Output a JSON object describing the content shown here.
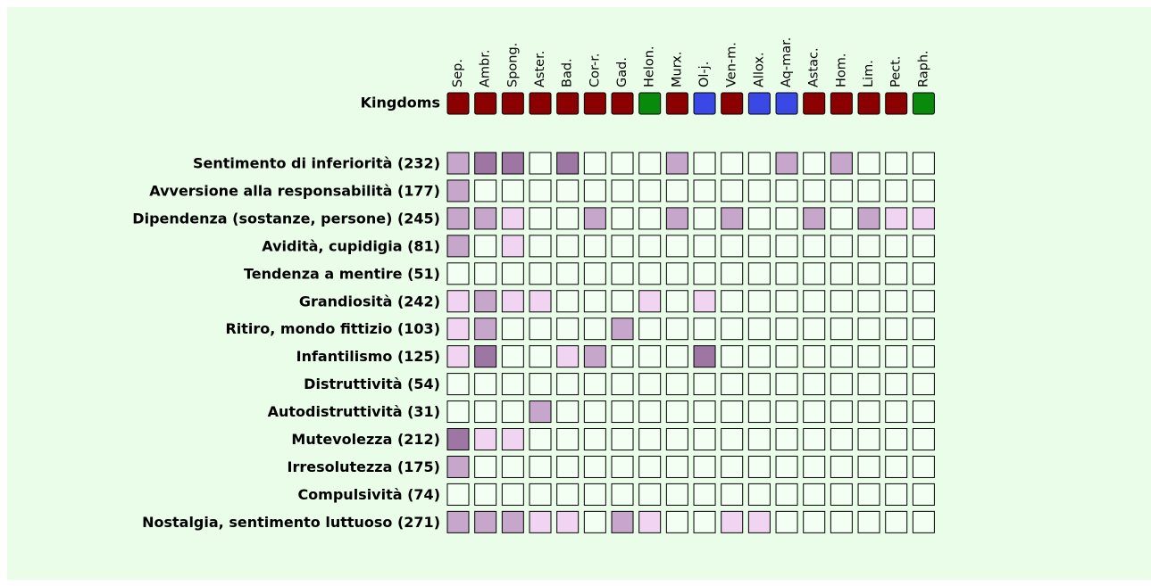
{
  "chart_data": {
    "type": "heatmap",
    "kingdoms_label": "Kingdoms",
    "x": [
      "Sep.",
      "Ambr.",
      "Spong.",
      "Aster.",
      "Bad.",
      "Cor-r.",
      "Gad.",
      "Helon.",
      "Murx.",
      "Ol-j.",
      "Ven-m.",
      "Allox.",
      "Aq-mar.",
      "Astac.",
      "Hom.",
      "Lim.",
      "Pect.",
      "Raph."
    ],
    "kingdom_colors": [
      "#8b0000",
      "#8b0000",
      "#8b0000",
      "#8b0000",
      "#8b0000",
      "#8b0000",
      "#8b0000",
      "#0a8a0a",
      "#8b0000",
      "#3a48e6",
      "#8b0000",
      "#3a48e6",
      "#3a48e6",
      "#8b0000",
      "#8b0000",
      "#8b0000",
      "#8b0000",
      "#0a8a0a"
    ],
    "y": [
      "Sentimento di inferiorità (232)",
      "Avversione alla responsabilità (177)",
      "Dipendenza (sostanze, persone) (245)",
      "Avidità, cupidigia (81)",
      "Tendenza a mentire (51)",
      "Grandiosità (242)",
      "Ritiro, mondo fittizio (103)",
      "Infantilismo (125)",
      "Distruttività (54)",
      "Autodistruttività (31)",
      "Mutevolezza (212)",
      "Irresolutezza (175)",
      "Compulsività (74)",
      "Nostalgia, sentimento luttuoso (271)"
    ],
    "level_colors": [
      "#f3fff3",
      "#f0d4f2",
      "#c7a6cb",
      "#9d76a3"
    ],
    "values": [
      [
        2,
        3,
        3,
        0,
        3,
        0,
        0,
        0,
        2,
        0,
        0,
        0,
        2,
        0,
        2,
        0,
        0,
        0
      ],
      [
        2,
        0,
        0,
        0,
        0,
        0,
        0,
        0,
        0,
        0,
        0,
        0,
        0,
        0,
        0,
        0,
        0,
        0
      ],
      [
        2,
        2,
        1,
        0,
        0,
        2,
        0,
        0,
        2,
        0,
        2,
        0,
        0,
        2,
        0,
        2,
        1,
        1
      ],
      [
        2,
        0,
        1,
        0,
        0,
        0,
        0,
        0,
        0,
        0,
        0,
        0,
        0,
        0,
        0,
        0,
        0,
        0
      ],
      [
        0,
        0,
        0,
        0,
        0,
        0,
        0,
        0,
        0,
        0,
        0,
        0,
        0,
        0,
        0,
        0,
        0,
        0
      ],
      [
        1,
        2,
        1,
        1,
        0,
        0,
        0,
        1,
        0,
        1,
        0,
        0,
        0,
        0,
        0,
        0,
        0,
        0
      ],
      [
        1,
        2,
        0,
        0,
        0,
        0,
        2,
        0,
        0,
        0,
        0,
        0,
        0,
        0,
        0,
        0,
        0,
        0
      ],
      [
        1,
        3,
        0,
        0,
        1,
        2,
        0,
        0,
        0,
        3,
        0,
        0,
        0,
        0,
        0,
        0,
        0,
        0
      ],
      [
        0,
        0,
        0,
        0,
        0,
        0,
        0,
        0,
        0,
        0,
        0,
        0,
        0,
        0,
        0,
        0,
        0,
        0
      ],
      [
        0,
        0,
        0,
        2,
        0,
        0,
        0,
        0,
        0,
        0,
        0,
        0,
        0,
        0,
        0,
        0,
        0,
        0
      ],
      [
        3,
        1,
        1,
        0,
        0,
        0,
        0,
        0,
        0,
        0,
        0,
        0,
        0,
        0,
        0,
        0,
        0,
        0
      ],
      [
        2,
        0,
        0,
        0,
        0,
        0,
        0,
        0,
        0,
        0,
        0,
        0,
        0,
        0,
        0,
        0,
        0,
        0
      ],
      [
        0,
        0,
        0,
        0,
        0,
        0,
        0,
        0,
        0,
        0,
        0,
        0,
        0,
        0,
        0,
        0,
        0,
        0
      ],
      [
        2,
        2,
        2,
        1,
        1,
        0,
        2,
        1,
        0,
        0,
        1,
        1,
        0,
        0,
        0,
        0,
        0,
        0
      ]
    ]
  }
}
